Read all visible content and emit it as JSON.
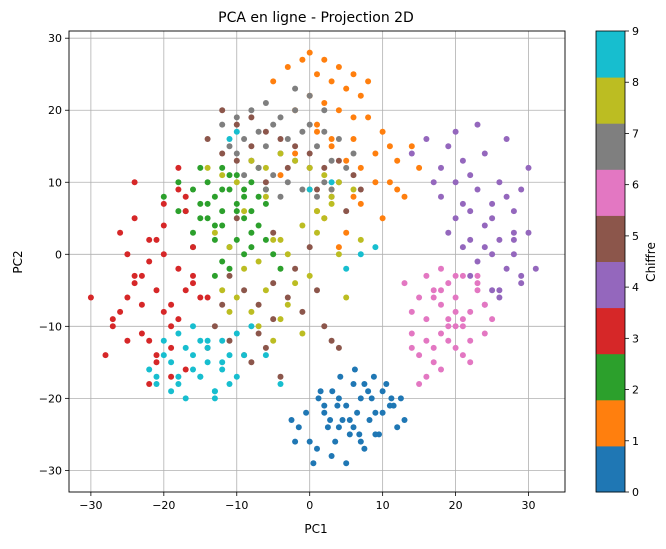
{
  "chart_data": {
    "type": "scatter",
    "title": "PCA en ligne - Projection 2D",
    "xlabel": "PC1",
    "ylabel": "PC2",
    "xlim": [
      -33,
      35
    ],
    "ylim": [
      -33,
      31
    ],
    "xticks": [
      -30,
      -20,
      -10,
      0,
      10,
      20,
      30
    ],
    "yticks": [
      -30,
      -20,
      -10,
      0,
      10,
      20,
      30
    ],
    "grid": true,
    "colorbar": {
      "label": "Chiffre",
      "ticks": [
        0,
        1,
        2,
        3,
        4,
        5,
        6,
        7,
        8,
        9
      ],
      "range": [
        0,
        9
      ],
      "colors": [
        "#1f77b4",
        "#ff7f0e",
        "#2ca02c",
        "#d62728",
        "#9467bd",
        "#8c564b",
        "#e377c2",
        "#7f7f7f",
        "#bcbd22",
        "#17becf"
      ]
    },
    "series": [
      {
        "digit": 0,
        "color": "#1f77b4",
        "x": [
          1.2,
          2.0,
          3.1,
          4.0,
          5.0,
          6.0,
          7.0,
          8.2,
          9.0,
          10.0,
          11.0,
          12.0,
          3.5,
          5.5,
          6.5,
          7.5,
          8.5,
          2.5,
          4.5,
          1.0,
          0.5,
          -0.5,
          -1.5,
          -2.0,
          9.5,
          10.5,
          11.5,
          4.2,
          6.2,
          8.0,
          3.0,
          5.0,
          7.0,
          2.0,
          4.0,
          6.0,
          12.5,
          13.0,
          1.5,
          9.0,
          0.0,
          -2.5,
          10.0,
          7.5,
          5.5,
          3.8,
          6.8,
          2.8,
          8.8,
          11.2
        ],
        "y": [
          -20,
          -22,
          -19,
          -24,
          -21,
          -18,
          -20,
          -23,
          -22,
          -19,
          -21,
          -24,
          -26,
          -25,
          -22,
          -27,
          -20,
          -24,
          -23,
          -27,
          -29,
          -22,
          -24,
          -26,
          -25,
          -18,
          -21,
          -17,
          -16,
          -19,
          -28,
          -29,
          -26,
          -21,
          -20,
          -24,
          -20,
          -23,
          -19,
          -25,
          -26,
          -23,
          -22,
          -18,
          -23,
          -21,
          -25,
          -23,
          -17,
          -20
        ]
      },
      {
        "digit": 1,
        "color": "#ff7f0e",
        "x": [
          -5,
          -3,
          -1,
          0,
          1,
          2,
          3,
          4,
          5,
          6,
          7,
          8,
          2,
          4,
          6,
          0,
          -2,
          1,
          3,
          5,
          7,
          9,
          10,
          11,
          12,
          8,
          6,
          3,
          1,
          -4,
          0,
          2,
          5,
          7,
          9,
          4,
          6,
          1,
          3,
          10,
          12,
          -2,
          14,
          15,
          13,
          11
        ],
        "y": [
          24,
          26,
          27,
          28,
          25,
          27,
          24,
          26,
          23,
          25,
          22,
          24,
          21,
          20,
          19,
          22,
          20,
          17,
          15,
          13,
          12,
          14,
          17,
          15,
          13,
          19,
          8,
          9,
          6,
          11,
          12,
          5,
          3,
          7,
          10,
          1,
          16,
          18,
          16,
          5,
          9,
          14,
          15,
          12,
          8,
          10
        ]
      },
      {
        "digit": 2,
        "color": "#2ca02c",
        "x": [
          -20,
          -18,
          -16,
          -15,
          -14,
          -13,
          -12,
          -11,
          -10,
          -9,
          -8,
          -7,
          -6,
          -14,
          -12,
          -10,
          -8,
          -16,
          -13,
          -11,
          -9,
          -7,
          -17,
          -15,
          -12,
          -10,
          -8,
          -6,
          -5,
          -4,
          -13,
          -11,
          -14,
          -9,
          -12,
          -15,
          -10,
          -7,
          -18,
          -16,
          -11,
          -8,
          -13,
          -6,
          -9,
          -12
        ],
        "y": [
          8,
          10,
          9,
          7,
          10,
          8,
          9,
          11,
          7,
          9,
          10,
          8,
          7,
          5,
          4,
          6,
          3,
          3,
          2,
          1,
          0,
          4,
          6,
          5,
          -1,
          2,
          1,
          2,
          0,
          -2,
          -3,
          -2,
          7,
          5,
          12,
          12,
          11,
          12,
          6,
          1,
          9,
          6,
          4,
          9,
          8,
          6
        ]
      },
      {
        "digit": 3,
        "color": "#d62728",
        "x": [
          -30,
          -28,
          -27,
          -26,
          -25,
          -24,
          -23,
          -22,
          -21,
          -20,
          -19,
          -18,
          -17,
          -16,
          -15,
          -26,
          -24,
          -22,
          -20,
          -18,
          -16,
          -14,
          -25,
          -23,
          -21,
          -19,
          -17,
          -22,
          -20,
          -18,
          -24,
          -21,
          -19,
          -17,
          -16,
          -23,
          -20,
          -18,
          -25,
          -27,
          -22,
          -19,
          -21,
          -17,
          -24
        ],
        "y": [
          -6,
          -14,
          -10,
          -8,
          -6,
          -4,
          -3,
          -1,
          -5,
          -8,
          -7,
          -9,
          -5,
          -3,
          -6,
          3,
          5,
          2,
          0,
          -2,
          -4,
          -6,
          -12,
          -11,
          -14,
          -13,
          -16,
          -18,
          7,
          9,
          10,
          -15,
          -10,
          8,
          1,
          -7,
          4,
          12,
          0,
          -9,
          -12,
          -17,
          2,
          6,
          -3
        ]
      },
      {
        "digit": 4,
        "color": "#9467bd",
        "x": [
          14,
          16,
          18,
          19,
          20,
          21,
          22,
          23,
          24,
          25,
          26,
          27,
          28,
          29,
          30,
          18,
          20,
          22,
          24,
          26,
          28,
          21,
          23,
          25,
          27,
          29,
          31,
          19,
          22,
          25,
          28,
          24,
          26,
          20,
          23,
          27,
          30,
          17,
          21,
          25,
          29,
          22,
          26,
          28,
          24
        ],
        "y": [
          14,
          16,
          12,
          15,
          10,
          13,
          11,
          9,
          14,
          7,
          10,
          8,
          6,
          9,
          3,
          8,
          5,
          6,
          4,
          2,
          3,
          1,
          -1,
          0,
          -2,
          -3,
          -2,
          3,
          2,
          -5,
          0,
          -7,
          -5,
          17,
          18,
          16,
          12,
          10,
          7,
          5,
          -4,
          -3,
          -6,
          2,
          1
        ]
      },
      {
        "digit": 5,
        "color": "#8c564b",
        "x": [
          -12,
          -10,
          -8,
          -6,
          -4,
          -2,
          0,
          2,
          4,
          6,
          -14,
          -12,
          -10,
          -8,
          -6,
          -3,
          1,
          3,
          5,
          -11,
          -9,
          -7,
          -5,
          -13,
          -11,
          -9,
          -7,
          -5,
          -3,
          -1,
          1,
          -8,
          -6,
          -4,
          2,
          4,
          -10,
          -12,
          -14,
          -5,
          0,
          -2,
          3,
          7
        ],
        "y": [
          20,
          18,
          19,
          17,
          16,
          15,
          14,
          12,
          13,
          11,
          16,
          14,
          13,
          15,
          10,
          12,
          9,
          8,
          6,
          -3,
          -5,
          -7,
          -4,
          -10,
          -12,
          -14,
          -11,
          -9,
          -6,
          -8,
          -5,
          -15,
          -13,
          -17,
          -10,
          -13,
          5,
          -7,
          -13,
          3,
          1,
          -2,
          -12,
          9
        ]
      },
      {
        "digit": 6,
        "color": "#e377c2",
        "x": [
          14,
          15,
          16,
          17,
          18,
          19,
          20,
          21,
          22,
          23,
          24,
          16,
          18,
          20,
          22,
          15,
          17,
          19,
          21,
          23,
          14,
          16,
          18,
          20,
          17,
          19,
          21,
          15,
          18,
          22,
          24,
          13,
          16,
          19,
          21,
          18,
          20,
          17,
          23,
          25,
          14,
          20
        ],
        "y": [
          -8,
          -6,
          -9,
          -5,
          -7,
          -4,
          -6,
          -10,
          -8,
          -5,
          -7,
          -12,
          -11,
          -13,
          -12,
          -14,
          -15,
          -9,
          -3,
          -3,
          -11,
          -3,
          -2,
          -8,
          -13,
          -10,
          -14,
          -18,
          -16,
          -15,
          -11,
          -4,
          -17,
          -12,
          -9,
          -5,
          -3,
          -6,
          -4,
          -9,
          -13,
          -10
        ]
      },
      {
        "digit": 7,
        "color": "#7f7f7f",
        "x": [
          -12,
          -10,
          -8,
          -6,
          -4,
          -2,
          0,
          2,
          4,
          6,
          -11,
          -9,
          -7,
          -5,
          -3,
          -1,
          1,
          3,
          5,
          -10,
          -8,
          -6,
          -4,
          -2,
          0,
          2,
          -7,
          -5,
          -3,
          -1,
          1,
          3,
          -9,
          -6,
          -4,
          -8,
          4,
          0,
          -2,
          2
        ],
        "y": [
          18,
          19,
          20,
          21,
          19,
          20,
          18,
          17,
          16,
          14,
          15,
          16,
          17,
          18,
          16,
          17,
          15,
          13,
          12,
          14,
          13,
          15,
          14,
          13,
          12,
          10,
          12,
          11,
          10,
          9,
          8,
          9,
          11,
          9,
          8,
          13,
          10,
          22,
          23,
          20
        ]
      },
      {
        "digit": 8,
        "color": "#bcbd22",
        "x": [
          -14,
          -12,
          -10,
          -8,
          -6,
          -4,
          -2,
          0,
          2,
          4,
          6,
          -13,
          -11,
          -9,
          -7,
          -5,
          -3,
          -1,
          1,
          3,
          -10,
          -8,
          -6,
          -4,
          -2,
          0,
          2,
          5,
          -7,
          -5,
          -3,
          -1,
          1,
          3,
          -12,
          -9,
          -6,
          7,
          -11,
          -4,
          0,
          4
        ],
        "y": [
          12,
          11,
          10,
          13,
          12,
          14,
          13,
          12,
          11,
          10,
          9,
          3,
          1,
          -2,
          -1,
          2,
          0,
          4,
          6,
          7,
          -6,
          -8,
          -5,
          -9,
          -4,
          -3,
          5,
          -6,
          -10,
          -12,
          -7,
          -11,
          3,
          8,
          -5,
          6,
          8,
          2,
          -8,
          2,
          9,
          0
        ]
      },
      {
        "digit": 9,
        "color": "#17becf",
        "x": [
          -22,
          -21,
          -20,
          -19,
          -18,
          -17,
          -16,
          -15,
          -14,
          -13,
          -12,
          -11,
          -10,
          -9,
          -20,
          -18,
          -16,
          -14,
          -12,
          -10,
          -19,
          -17,
          -15,
          -13,
          -11,
          -21,
          -16,
          -14,
          -12,
          -8,
          -6,
          -4,
          -18,
          -15,
          -13,
          7,
          9,
          5,
          -10,
          -11,
          3,
          0
        ],
        "y": [
          -16,
          -17,
          -14,
          -15,
          -18,
          -13,
          -16,
          -17,
          -15,
          -19,
          -16,
          -18,
          -17,
          -14,
          -12,
          -11,
          -10,
          -13,
          -12,
          -11,
          -19,
          -20,
          -17,
          -20,
          -14,
          -18,
          -14,
          -12,
          -15,
          -10,
          -14,
          -18,
          -17,
          -12,
          -19,
          0,
          1,
          -2,
          17,
          16,
          10,
          9
        ]
      }
    ]
  }
}
